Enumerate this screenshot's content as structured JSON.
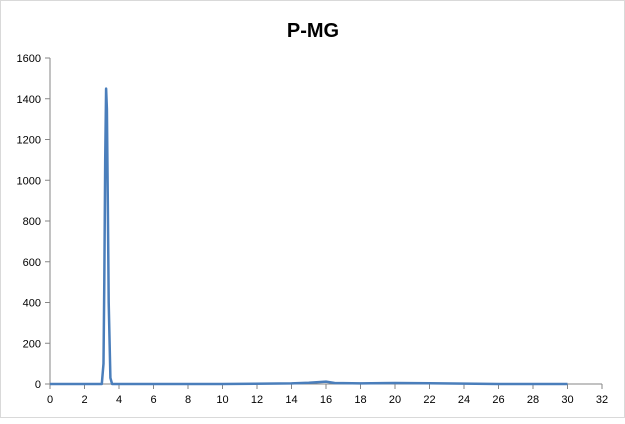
{
  "chart_data": {
    "type": "line",
    "title": "P-MG",
    "xlabel": "",
    "ylabel": "",
    "xlim": [
      0,
      32
    ],
    "ylim": [
      0,
      1600
    ],
    "xticks": [
      0,
      2,
      4,
      6,
      8,
      10,
      12,
      14,
      16,
      18,
      20,
      22,
      24,
      26,
      28,
      30,
      32
    ],
    "yticks": [
      0,
      200,
      400,
      600,
      800,
      1000,
      1200,
      1400,
      1600
    ],
    "grid": false,
    "legend": "none",
    "series": [
      {
        "color": "#4a7ebb",
        "x": [
          0,
          3.0,
          3.1,
          3.15,
          3.2,
          3.25,
          3.3,
          3.35,
          3.4,
          3.5,
          3.6,
          10,
          14,
          15,
          16,
          16.5,
          18,
          20,
          22,
          24,
          26,
          30
        ],
        "y": [
          0,
          0,
          100,
          500,
          1100,
          1450,
          1350,
          900,
          400,
          30,
          0,
          0,
          3,
          6,
          12,
          5,
          3,
          5,
          4,
          2,
          0,
          0
        ]
      }
    ]
  }
}
